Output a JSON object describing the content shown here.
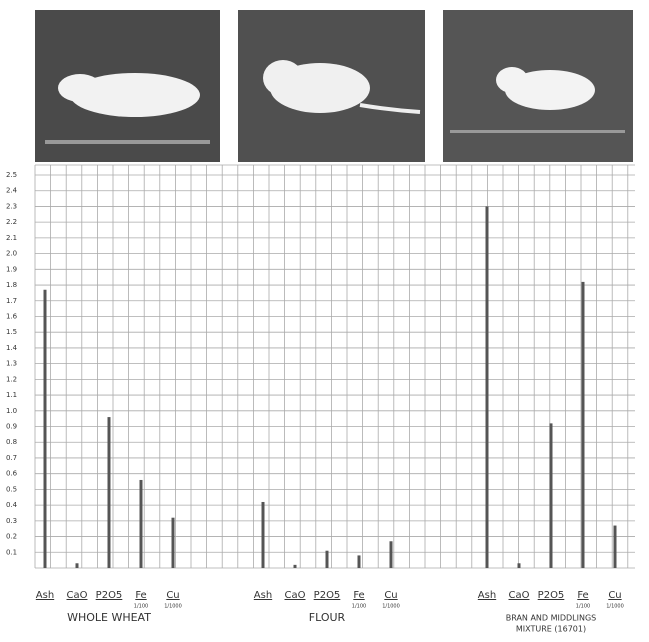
{
  "chart_data": {
    "type": "bar",
    "categories": [
      "Ash",
      "CaO",
      "P2O5",
      "Fe",
      "Cu"
    ],
    "unit_notes": [
      "1/100",
      "1/1000"
    ],
    "color": "#555555",
    "groups": [
      {
        "label_lines": [
          "WHOLE WHEAT"
        ],
        "values": [
          1.77,
          0.03,
          0.96,
          0.56,
          0.32
        ]
      },
      {
        "label_lines": [
          "FLOUR"
        ],
        "values": [
          0.42,
          0.02,
          0.11,
          0.08,
          0.17
        ]
      },
      {
        "label_lines": [
          "BRAN AND MIDDLINGS",
          "MIXTURE (16701)"
        ],
        "values": [
          2.3,
          0.03,
          0.92,
          1.82,
          0.27
        ]
      }
    ],
    "ylim": [
      0,
      2.5
    ],
    "yticks": [
      0.1,
      0.2,
      0.3,
      0.4,
      0.5,
      0.6,
      0.7,
      0.8,
      0.9,
      {
        "value": 1,
        "label": "1.0"
      },
      1.1,
      1.2,
      1.3,
      1.4,
      1.5,
      1.6,
      1.7,
      1.8,
      1.9,
      {
        "value": 2,
        "label": "2.0"
      },
      2.1,
      2.2,
      2.3,
      2.4,
      2.5
    ],
    "grid": true
  }
}
